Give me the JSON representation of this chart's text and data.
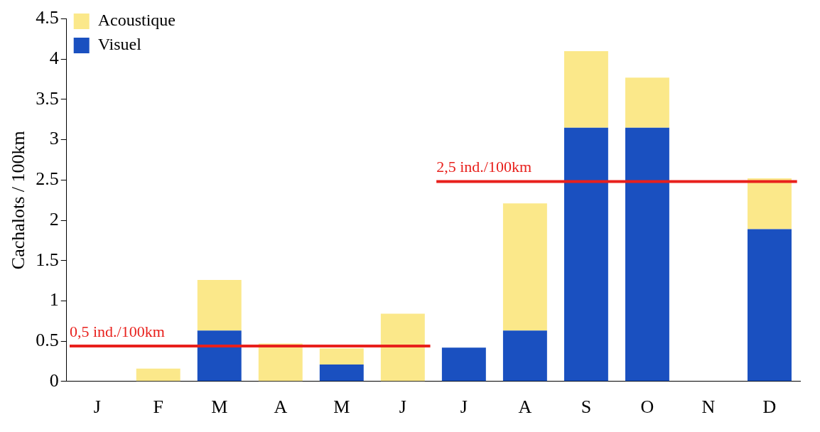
{
  "chart_data": {
    "type": "bar",
    "stacked": true,
    "ylabel": "Cachalots / 100km",
    "categories": [
      "J",
      "F",
      "M",
      "A",
      "M",
      "J",
      "J",
      "A",
      "S",
      "O",
      "N",
      "D"
    ],
    "series": [
      {
        "name": "Visuel",
        "color": "#1a50c0",
        "values": [
          null,
          0,
          0.63,
          0,
          0.21,
          0,
          0.42,
          0.63,
          3.15,
          3.15,
          null,
          1.89
        ]
      },
      {
        "name": "Acoustique",
        "color": "#fbe88a",
        "values": [
          null,
          0.16,
          0.63,
          0.47,
          0.2,
          0.84,
          0,
          1.58,
          0.95,
          0.62,
          null,
          0.63
        ]
      }
    ],
    "ylim": [
      0,
      4.5
    ],
    "yticks": [
      0,
      0.5,
      1,
      1.5,
      2,
      2.5,
      3,
      3.5,
      4,
      4.5
    ],
    "ref_lines": [
      {
        "axis": "y",
        "value": 0.44,
        "label": "0,5 ind./100km",
        "color": "#e8201c"
      },
      {
        "axis": "y",
        "value": 2.48,
        "label": "2,5 ind./100km",
        "color": "#e8201c"
      }
    ],
    "grid": false,
    "legend": "top left"
  }
}
